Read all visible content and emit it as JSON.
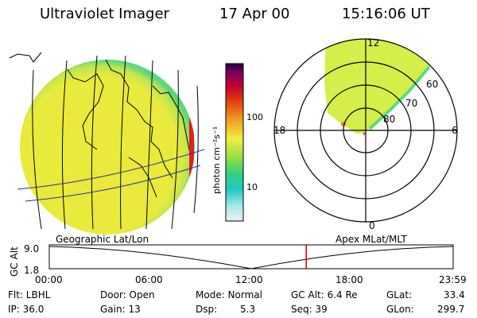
{
  "header": {
    "title": "Ultraviolet Imager",
    "date": "17 Apr 00",
    "time": "15:16:06 UT"
  },
  "colors": {
    "earth_fill": "#e8e83a",
    "polar_fill": "#d6ee4a",
    "marker": "#d00000"
  },
  "colorbar": {
    "unit_label": "photon cm⁻²s⁻¹",
    "ticks": [
      "100",
      "10"
    ],
    "stops": [
      "#f0f0f0",
      "#a0e8e8",
      "#20c8c8",
      "#30d080",
      "#90e040",
      "#f0f040",
      "#f0a020",
      "#e04010",
      "#c00030",
      "#800060",
      "#200040"
    ]
  },
  "polar": {
    "label_top": "12",
    "label_left": "18",
    "label_right": "6",
    "label_bottom": "0",
    "ring_labels": [
      "60",
      "70",
      "80"
    ]
  },
  "captions": {
    "left": "Geographic Lat/Lon",
    "right": "Apex MLat/MLT"
  },
  "altplot": {
    "ylabel": "GC Alt",
    "ymax": "9.0",
    "ymin": "1.8",
    "xticks": [
      "00:00",
      "06:00",
      "12:00",
      "18:00",
      "23:59"
    ],
    "current_hour": 15.27
  },
  "info": {
    "flt": "Flt: LBHL",
    "ip": "IP: 36.0",
    "door": "Door: Open",
    "gain": "Gain: 13",
    "mode": "Mode: Normal",
    "dsp_label": "Dsp:",
    "dsp_value": "5.3",
    "gcalt": "GC Alt: 6.4 Re",
    "seq": "Seq: 39",
    "glat_label": "GLat:",
    "glat_value": "33.4",
    "glon_label": "GLon:",
    "glon_value": "299.7"
  }
}
